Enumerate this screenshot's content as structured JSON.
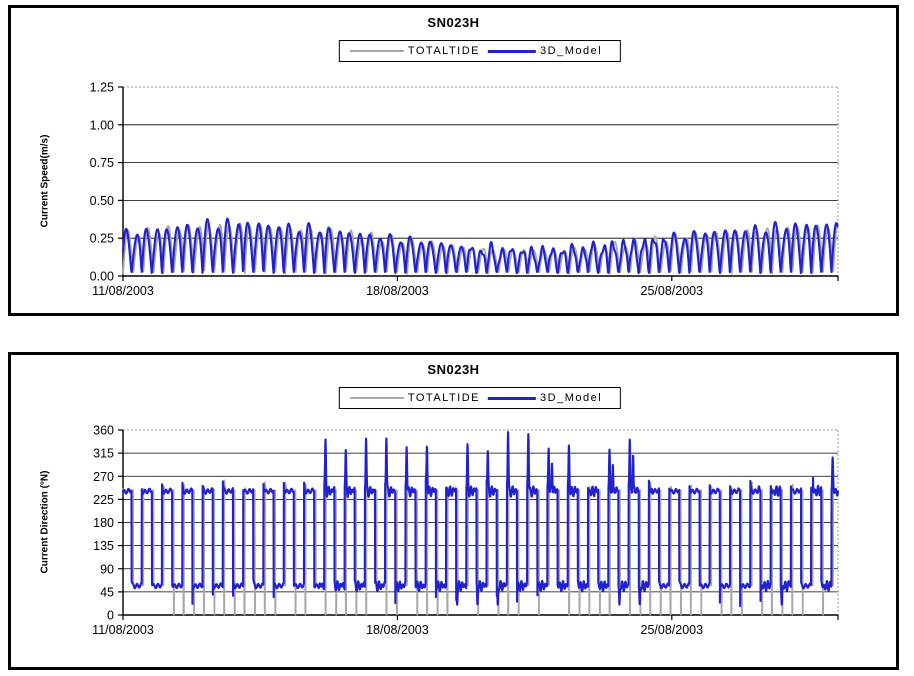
{
  "station": "SN023H",
  "charts": [
    {
      "title": "SN023H",
      "y_label": "Current Speed(m/s)",
      "legend": [
        {
          "label": "TOTALTIDE",
          "color": "#A8A8A8"
        },
        {
          "label": "3D_Model",
          "color": "#2222CC"
        }
      ]
    },
    {
      "title": "SN023H",
      "y_label": "Current Direction (°N)",
      "legend": [
        {
          "label": "TOTALTIDE",
          "color": "#A8A8A8"
        },
        {
          "label": "3D_Model",
          "color": "#2222CC"
        }
      ]
    }
  ],
  "chart_data": [
    {
      "type": "line",
      "kind": "speed",
      "title": "SN023H",
      "xlabel": "",
      "ylabel": "Current Speed(m/s)",
      "ylim": [
        0,
        1.25
      ],
      "grid": "horizontal",
      "legend_position": "top-center",
      "yticks": [
        {
          "label": "0.00",
          "value": 0
        },
        {
          "label": "0.25",
          "value": 0.25
        },
        {
          "label": "0.50",
          "value": 0.5
        },
        {
          "label": "0.75",
          "value": 0.75
        },
        {
          "label": "1.00",
          "value": 1
        },
        {
          "label": "1.25",
          "value": 1.25
        }
      ],
      "xticks": [
        {
          "label": "11/08/2003",
          "day": 0
        },
        {
          "label": "18/08/2003",
          "day": 7
        },
        {
          "label": "25/08/2003",
          "day": 14
        }
      ],
      "span_days": 18.24,
      "semidiurnal_period_days": 0.5175,
      "diurnal_inequality": 0.12,
      "min_speed_mps": 0.02,
      "peak_speed_by_day_mps": [
        0.27,
        0.3,
        0.33,
        0.34,
        0.32,
        0.3,
        0.27,
        0.24,
        0.21,
        0.18,
        0.17,
        0.17,
        0.19,
        0.22,
        0.25,
        0.28,
        0.3,
        0.32,
        0.33
      ],
      "series": [
        {
          "name": "TOTALTIDE",
          "color": "#A8A8A8",
          "width": 1.8,
          "phase_shift_days": 0,
          "amp_scale": 1.0
        },
        {
          "name": "3D_Model",
          "color": "#2222CC",
          "width": 2.1,
          "phase_shift_days": 0.04,
          "amp_scale": 1.03
        }
      ]
    },
    {
      "type": "line",
      "kind": "direction",
      "title": "SN023H",
      "xlabel": "",
      "ylabel": "Current Direction (°N)",
      "ylim": [
        0,
        360
      ],
      "grid": "horizontal",
      "legend_position": "top-center",
      "yticks": [
        {
          "label": "0",
          "value": 0
        },
        {
          "label": "45",
          "value": 45
        },
        {
          "label": "90",
          "value": 90
        },
        {
          "label": "135",
          "value": 135
        },
        {
          "label": "180",
          "value": 180
        },
        {
          "label": "225",
          "value": 225
        },
        {
          "label": "270",
          "value": 270
        },
        {
          "label": "315",
          "value": 315
        },
        {
          "label": "360",
          "value": 360
        }
      ],
      "xticks": [
        {
          "label": "11/08/2003",
          "day": 0
        },
        {
          "label": "18/08/2003",
          "day": 7
        },
        {
          "label": "25/08/2003",
          "day": 14
        }
      ],
      "span_days": 18.24,
      "semidiurnal_period_days": 0.5175,
      "flood_direction_deg": 238,
      "ebb_direction_deg": 55,
      "flood_overshoot_deg": 18,
      "slack_dip_deg": 0,
      "model_spike_window_days": [
        5,
        13.5
      ],
      "model_extra_spike_days": [
        16.6,
        18.0
      ],
      "model_spike_range_deg": [
        300,
        358
      ],
      "series": [
        {
          "name": "TOTALTIDE",
          "color": "#A8A8A8",
          "width": 1.8,
          "phase_shift_days": 0,
          "amp_scale": 1.0
        },
        {
          "name": "3D_Model",
          "color": "#2222CC",
          "width": 2.1,
          "phase_shift_days": 0.04,
          "amp_scale": 1.0
        }
      ]
    }
  ]
}
